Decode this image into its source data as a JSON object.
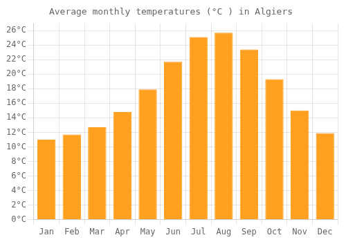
{
  "chart_data": {
    "type": "bar",
    "title": "Average monthly temperatures (°C ) in Algiers",
    "categories": [
      "Jan",
      "Feb",
      "Mar",
      "Apr",
      "May",
      "Jun",
      "Jul",
      "Aug",
      "Sep",
      "Oct",
      "Nov",
      "Dec"
    ],
    "values": [
      11.0,
      11.7,
      12.7,
      14.8,
      17.9,
      21.7,
      25.1,
      25.7,
      23.4,
      19.3,
      15.0,
      11.9
    ],
    "color": "#FFA020",
    "ylim": [
      0,
      27
    ],
    "yticks": [
      {
        "value": 0,
        "label": "0°C"
      },
      {
        "value": 2,
        "label": "2°C"
      },
      {
        "value": 4,
        "label": "4°C"
      },
      {
        "value": 6,
        "label": "6°C"
      },
      {
        "value": 8,
        "label": "8°C"
      },
      {
        "value": 10,
        "label": "10°C"
      },
      {
        "value": 12,
        "label": "12°C"
      },
      {
        "value": 14,
        "label": "14°C"
      },
      {
        "value": 16,
        "label": "16°C"
      },
      {
        "value": 18,
        "label": "18°C"
      },
      {
        "value": 20,
        "label": "20°C"
      },
      {
        "value": 22,
        "label": "22°C"
      },
      {
        "value": 24,
        "label": "24°C"
      },
      {
        "value": 26,
        "label": "26°C"
      }
    ],
    "grid": true
  }
}
